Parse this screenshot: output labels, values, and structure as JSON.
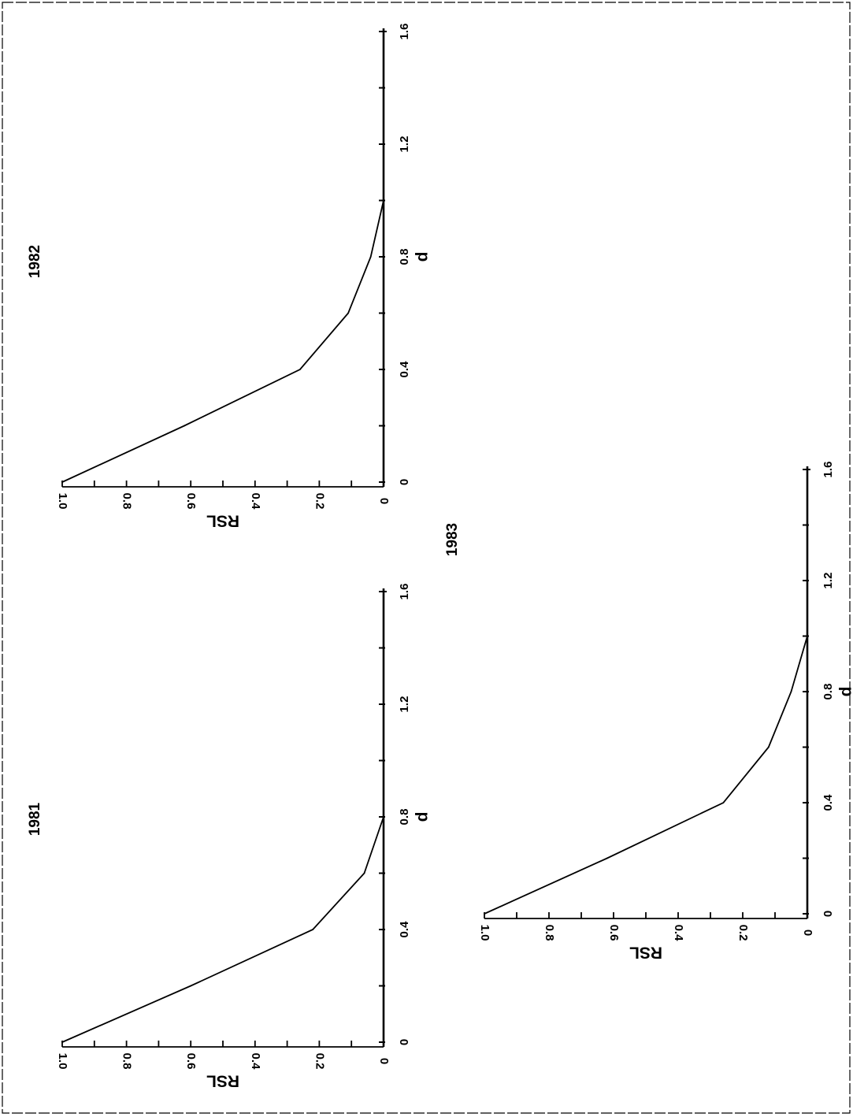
{
  "chart_data": [
    {
      "type": "line",
      "title": "1981",
      "xlabel": "d",
      "ylabel": "RSL",
      "x_ticks": [
        "0",
        "0.4",
        "0.8",
        "1.2",
        "1.6"
      ],
      "y_ticks": [
        "0",
        "0.2",
        "0.4",
        "0.6",
        "0.8",
        "1.0"
      ],
      "xlim": [
        0,
        1.6
      ],
      "ylim": [
        0,
        1.0
      ],
      "grid": false,
      "series": [
        {
          "x": [
            0,
            0.2,
            0.4,
            0.6,
            0.8,
            1.0,
            1.2,
            1.4,
            1.6
          ],
          "values": [
            1.0,
            0.6,
            0.22,
            0.06,
            0.0,
            0.0,
            0.0,
            0.0,
            0.0
          ]
        }
      ]
    },
    {
      "type": "line",
      "title": "1982",
      "xlabel": "d",
      "ylabel": "RSL",
      "x_ticks": [
        "0",
        "0.4",
        "0.8",
        "1.2",
        "1.6"
      ],
      "y_ticks": [
        "0",
        "0.2",
        "0.4",
        "0.6",
        "0.8",
        "1.0"
      ],
      "xlim": [
        0,
        1.6
      ],
      "ylim": [
        0,
        1.0
      ],
      "grid": false,
      "series": [
        {
          "x": [
            0,
            0.2,
            0.4,
            0.6,
            0.8,
            1.0,
            1.2,
            1.4,
            1.6
          ],
          "values": [
            1.0,
            0.62,
            0.26,
            0.11,
            0.04,
            0.0,
            0.0,
            0.0,
            0.0
          ]
        }
      ]
    },
    {
      "type": "line",
      "title": "1983",
      "xlabel": "d",
      "ylabel": "RSL",
      "x_ticks": [
        "0",
        "0.4",
        "0.8",
        "1.2",
        "1.6"
      ],
      "y_ticks": [
        "0",
        "0.2",
        "0.4",
        "0.6",
        "0.8",
        "1.0"
      ],
      "xlim": [
        0,
        1.6
      ],
      "ylim": [
        0,
        1.0
      ],
      "grid": false,
      "series": [
        {
          "x": [
            0,
            0.2,
            0.4,
            0.6,
            0.8,
            1.0,
            1.2,
            1.4,
            1.6
          ],
          "values": [
            1.0,
            0.62,
            0.26,
            0.12,
            0.05,
            0.0,
            0.0,
            0.0,
            0.0
          ]
        }
      ]
    }
  ]
}
